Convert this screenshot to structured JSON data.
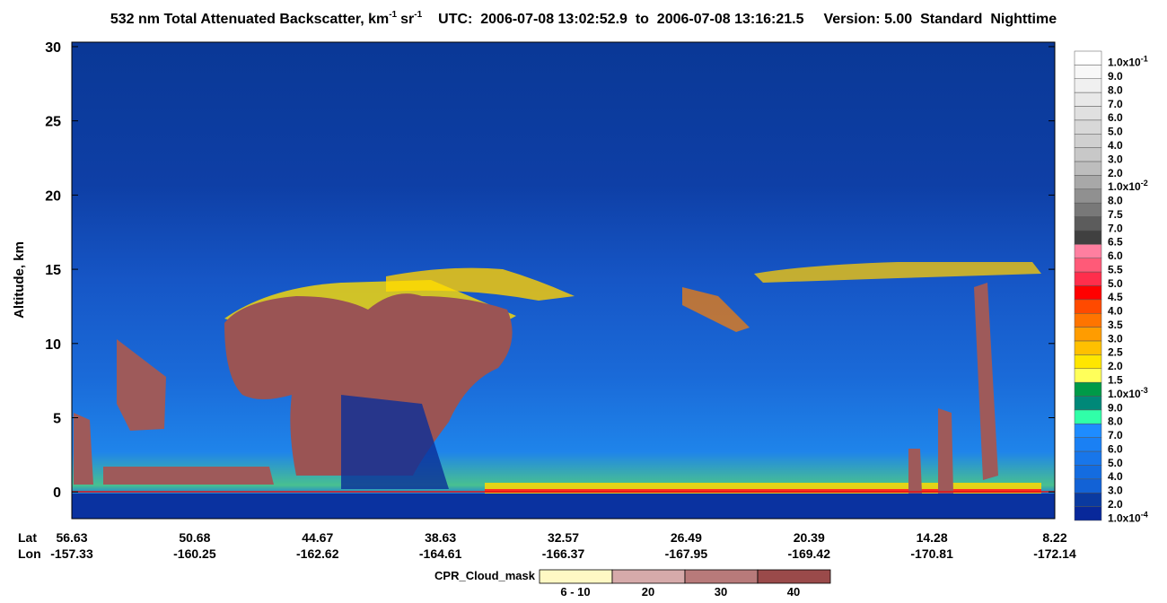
{
  "chart_data": {
    "type": "curtain",
    "title": {
      "quantity": "532 nm Total Attenuated Backscatter, km",
      "unit1_exp": "-1",
      "unit2": "sr",
      "unit2_exp": "-1",
      "time": "UTC:  2006-07-08 13:02:52.9  to  2006-07-08 13:16:21.5",
      "version": "Version: 5.00  Standard  Nighttime"
    },
    "y_label": "Altitude, km",
    "ylim": [
      -1.8,
      30.3
    ],
    "yticks": [
      0,
      5,
      10,
      15,
      20,
      25,
      30
    ],
    "x_row_labels": [
      "Lat",
      "Lon"
    ],
    "lat": [
      "56.63",
      "50.68",
      "44.67",
      "38.63",
      "32.57",
      "26.49",
      "20.39",
      "14.28",
      "8.22"
    ],
    "lon": [
      "-157.33",
      "-160.25",
      "-162.62",
      "-164.61",
      "-166.37",
      "-167.95",
      "-169.42",
      "-170.81",
      "-172.14"
    ],
    "colorbar": {
      "labels": [
        {
          "text": "1.0x10",
          "sup": "-1"
        },
        "9.0",
        "8.0",
        "7.0",
        "6.0",
        "5.0",
        "4.0",
        "3.0",
        "2.0",
        {
          "text": "1.0x10",
          "sup": "-2"
        },
        "8.0",
        "7.5",
        "7.0",
        "6.5",
        "6.0",
        "5.5",
        "5.0",
        "4.5",
        "4.0",
        "3.5",
        "3.0",
        "2.5",
        "2.0",
        "1.5",
        {
          "text": "1.0x10",
          "sup": "-3"
        },
        "9.0",
        "8.0",
        "7.0",
        "6.0",
        "5.0",
        "4.0",
        "3.0",
        "2.0",
        {
          "text": "1.0x10",
          "sup": "-4"
        }
      ],
      "colors": [
        "#ffffff",
        "#f8f8f8",
        "#f0f0f0",
        "#e8e8e8",
        "#e0e0e0",
        "#d8d8d8",
        "#d0d0d0",
        "#c8c8c8",
        "#bdbdbd",
        "#a8a8a8",
        "#909090",
        "#787878",
        "#5c5c5c",
        "#404040",
        "#ff7fa0",
        "#ff5a78",
        "#ff2e4c",
        "#ff0000",
        "#ff4a00",
        "#ff7400",
        "#ff9c00",
        "#ffc000",
        "#ffe600",
        "#ffff5a",
        "#009a48",
        "#008878",
        "#30ffa8",
        "#1e8cff",
        "#1a80f4",
        "#1876ea",
        "#146ce0",
        "#1262d6",
        "#0a3aa0",
        "#08289a"
      ]
    },
    "cloud_mask": {
      "label": "CPR_Cloud_mask",
      "categories": [
        "6 - 10",
        "20",
        "30",
        "40"
      ],
      "colors": [
        "#fff8c4",
        "#d6aaaa",
        "#b87a7a",
        "#9a4a4a"
      ]
    }
  }
}
